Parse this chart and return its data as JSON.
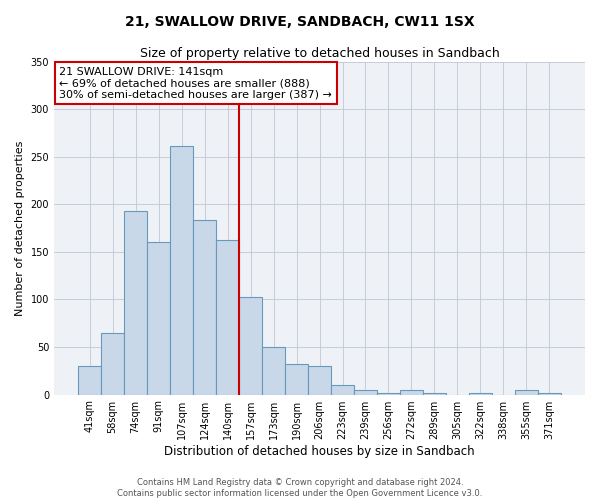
{
  "title": "21, SWALLOW DRIVE, SANDBACH, CW11 1SX",
  "subtitle": "Size of property relative to detached houses in Sandbach",
  "xlabel": "Distribution of detached houses by size in Sandbach",
  "ylabel": "Number of detached properties",
  "bin_labels": [
    "41sqm",
    "58sqm",
    "74sqm",
    "91sqm",
    "107sqm",
    "124sqm",
    "140sqm",
    "157sqm",
    "173sqm",
    "190sqm",
    "206sqm",
    "223sqm",
    "239sqm",
    "256sqm",
    "272sqm",
    "289sqm",
    "305sqm",
    "322sqm",
    "338sqm",
    "355sqm",
    "371sqm"
  ],
  "bar_heights": [
    30,
    65,
    193,
    160,
    261,
    184,
    163,
    103,
    50,
    32,
    30,
    10,
    5,
    2,
    5,
    2,
    0,
    2,
    0,
    5,
    2
  ],
  "bar_color": "#c8d8e8",
  "bar_edge_color": "#6699bb",
  "vline_x_idx": 6,
  "vline_color": "#cc0000",
  "annotation_title": "21 SWALLOW DRIVE: 141sqm",
  "annotation_line1": "← 69% of detached houses are smaller (888)",
  "annotation_line2": "30% of semi-detached houses are larger (387) →",
  "annotation_box_color": "#ffffff",
  "annotation_border_color": "#cc0000",
  "ylim": [
    0,
    350
  ],
  "yticks": [
    0,
    50,
    100,
    150,
    200,
    250,
    300,
    350
  ],
  "footer1": "Contains HM Land Registry data © Crown copyright and database right 2024.",
  "footer2": "Contains public sector information licensed under the Open Government Licence v3.0.",
  "bg_color": "#eef2f7",
  "title_fontsize": 10,
  "subtitle_fontsize": 9,
  "ylabel_fontsize": 8,
  "xlabel_fontsize": 8.5,
  "tick_fontsize": 7,
  "ann_fontsize": 8,
  "footer_fontsize": 6
}
